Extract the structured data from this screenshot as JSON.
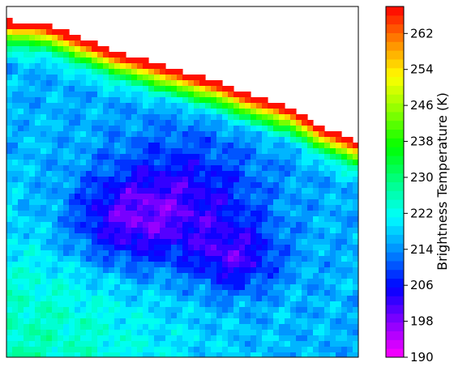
{
  "chart_data": {
    "type": "heatmap",
    "subtype": "filled-contour",
    "colormap": "gist_rainbow_r",
    "color_stops": [
      "#ff00ff",
      "#8800ff",
      "#0000ff",
      "#0088ff",
      "#00ffff",
      "#00ff88",
      "#00ff00",
      "#88ff00",
      "#ffff00",
      "#ff8800",
      "#ff0000"
    ],
    "colorbar": {
      "label": "Brightness Temperature (K)",
      "range": [
        190,
        268
      ],
      "ticks": [
        190,
        198,
        206,
        214,
        222,
        230,
        238,
        246,
        254,
        262
      ],
      "levels": 40
    },
    "axes": {
      "x_ticks_visible": false,
      "y_ticks_visible": false,
      "grid": false
    },
    "field": {
      "background": 216,
      "cold_core_min": 194,
      "warm_edge_max": 268,
      "warm_cold_boundary": [
        [
          0,
          0.055
        ],
        [
          0.1,
          0.06
        ],
        [
          0.2,
          0.1
        ],
        [
          0.3,
          0.14
        ],
        [
          0.4,
          0.17
        ],
        [
          0.5,
          0.2
        ],
        [
          0.6,
          0.23
        ],
        [
          0.7,
          0.27
        ],
        [
          0.8,
          0.3
        ],
        [
          0.9,
          0.36
        ],
        [
          1.0,
          0.4
        ]
      ]
    }
  }
}
